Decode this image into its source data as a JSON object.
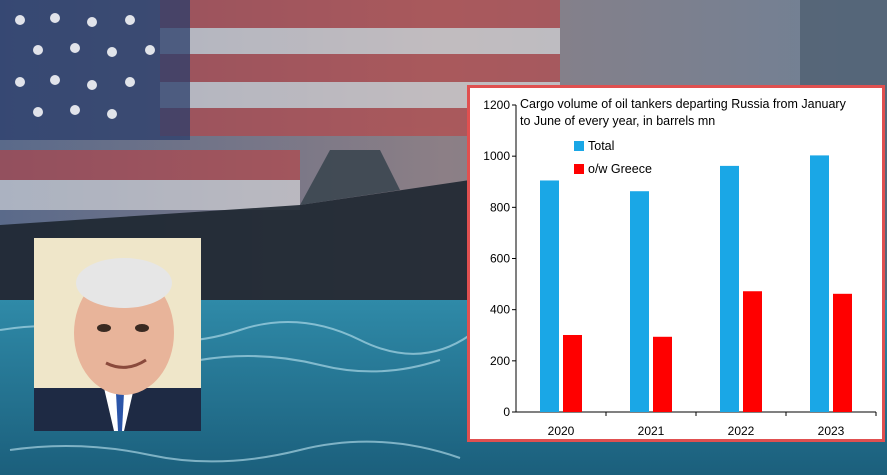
{
  "colors": {
    "total": "#1aa7e6",
    "greece": "#ff0000",
    "frame": "#e05050"
  },
  "chart_data": {
    "type": "bar",
    "title": "Cargo volume of oil tankers departing Russia from January to June of every year, in barrels mn",
    "categories": [
      "2020",
      "2021",
      "2022",
      "2023"
    ],
    "series": [
      {
        "name": "Total",
        "values": [
          905,
          863,
          962,
          1003
        ]
      },
      {
        "name": "o/w Greece",
        "values": [
          301,
          294,
          472,
          462
        ]
      }
    ],
    "ylim": [
      0,
      1200
    ],
    "yticks": [
      0,
      200,
      400,
      600,
      800,
      1000,
      1200
    ],
    "xlabel": "",
    "ylabel": "",
    "grid": false,
    "legend_position": "top-left"
  }
}
